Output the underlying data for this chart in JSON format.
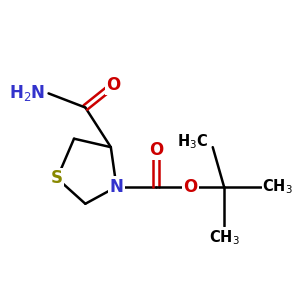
{
  "background_color": "#ffffff",
  "bond_color": "#000000",
  "bond_width": 1.8,
  "atom_colors": {
    "N": "#3333cc",
    "O": "#cc0000",
    "S": "#888800",
    "C": "#000000"
  },
  "font_size_atoms": 12,
  "font_size_groups": 10.5
}
